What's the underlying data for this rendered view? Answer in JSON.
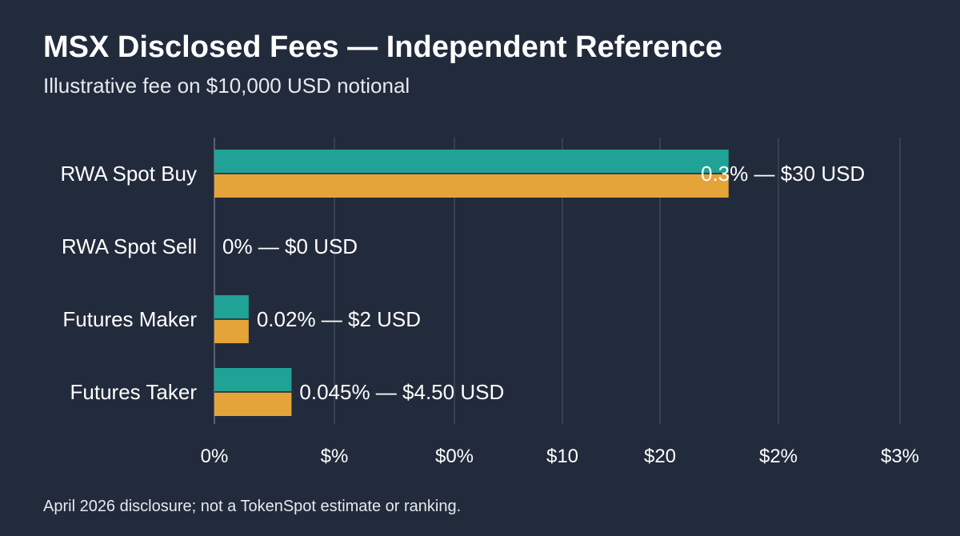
{
  "header": {
    "title": "MSX Disclosed Fees — Independent Reference",
    "subtitle": "Illustrative fee on $10,000 USD notional"
  },
  "footnote": "April 2026 disclosure; not a TokenSpot estimate or ranking.",
  "colors": {
    "background": "#222b3b",
    "teal": "#20a396",
    "orange": "#e5a43a",
    "grid": "#4a5465",
    "text": "#ffffff"
  },
  "chart_data": {
    "type": "bar",
    "orientation": "horizontal",
    "categories": [
      "RWA Spot Buy",
      "RWA Spot Sell",
      "Futures Maker",
      "Futures Taker"
    ],
    "series": [
      {
        "values": [
          30,
          0,
          2,
          4.5
        ]
      },
      {
        "values": [
          30,
          0,
          2,
          4.5
        ]
      }
    ],
    "data_labels": [
      "0.3% — $30 USD",
      "0% — $0 USD",
      "0.02% — $2 USD",
      "0.045% — $4.50 USD"
    ],
    "x_ticks": [
      "0%",
      "$%",
      "$0%",
      "$10",
      "$20",
      "$2%",
      "$3%"
    ],
    "xlim": [
      0,
      40
    ],
    "grid": true,
    "legend": "none"
  }
}
